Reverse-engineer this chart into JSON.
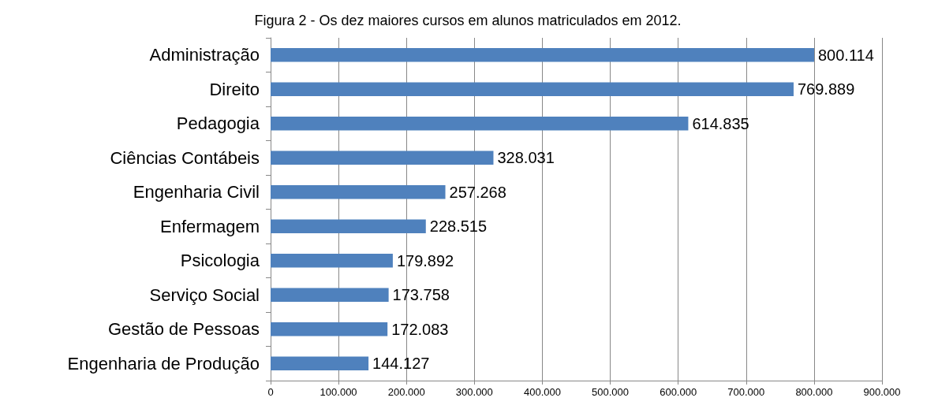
{
  "chart_data": {
    "type": "bar",
    "orientation": "horizontal",
    "title": "Figura 2 - Os dez maiores cursos em alunos matriculados em 2012.",
    "categories": [
      "Administração",
      "Direito",
      "Pedagogia",
      "Ciências Contábeis",
      "Engenharia Civil",
      "Enfermagem",
      "Psicologia",
      "Serviço Social",
      "Gestão de Pessoas",
      "Engenharia de Produção"
    ],
    "values": [
      800114,
      769889,
      614835,
      328031,
      257268,
      228515,
      179892,
      173758,
      172083,
      144127
    ],
    "value_labels": [
      "800.114",
      "769.889",
      "614.835",
      "328.031",
      "257.268",
      "228.515",
      "179.892",
      "173.758",
      "172.083",
      "144.127"
    ],
    "color": "#4f81bd",
    "xlim": [
      0,
      900000
    ],
    "xticks": [
      {
        "value": 0,
        "label": "0"
      },
      {
        "value": 100000,
        "label": "100.000"
      },
      {
        "value": 200000,
        "label": "200.000"
      },
      {
        "value": 300000,
        "label": "300.000"
      },
      {
        "value": 400000,
        "label": "400.000"
      },
      {
        "value": 500000,
        "label": "500.000"
      },
      {
        "value": 600000,
        "label": "600.000"
      },
      {
        "value": 700000,
        "label": "700.000"
      },
      {
        "value": 800000,
        "label": "800.000"
      },
      {
        "value": 900000,
        "label": "900.000"
      }
    ],
    "grid": "x"
  }
}
